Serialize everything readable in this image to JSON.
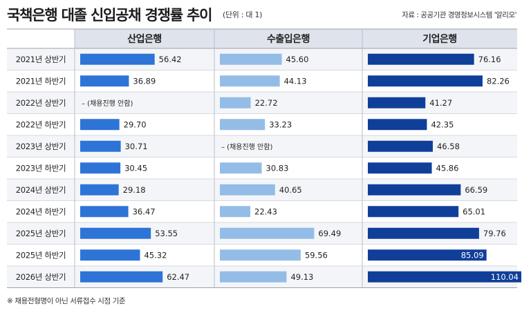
{
  "title": "국책은행 대졸 신입공채 경쟁률 추이",
  "unit_note": "(단위 : 대 1)",
  "source": "자료 : 공공기관 경영정보시스템 '알리오'",
  "footnote": "※ 채용전형명이 아닌 서류접수 시점 기준",
  "not_hired_label": "– (채용진행 안함)",
  "colors": {
    "산업은행": "#2e74d6",
    "수출입은행": "#93bde6",
    "기업은행": "#103f9a",
    "header_bg": "#dfe3ec",
    "row_bg_alt": "#f4f5f8"
  },
  "chart_data": {
    "type": "bar",
    "orientation": "horizontal",
    "categories": [
      "2021년 상반기",
      "2021년 하반기",
      "2022년 상반기",
      "2022년 하반기",
      "2023년 상반기",
      "2023년 하반기",
      "2024년 상반기",
      "2024년 하반기",
      "2025년 상반기",
      "2025년 하반기",
      "2026년 상반기"
    ],
    "series": [
      {
        "name": "산업은행",
        "values": [
          56.42,
          36.89,
          null,
          29.7,
          30.71,
          30.45,
          29.18,
          36.47,
          53.55,
          45.32,
          62.47
        ],
        "labels": [
          "56.42",
          "36.89",
          null,
          "29.70",
          "30.71",
          "30.45",
          "29.18",
          "36.47",
          "53.55",
          "45.32",
          "62.47"
        ]
      },
      {
        "name": "수출입은행",
        "values": [
          45.6,
          44.13,
          22.72,
          33.23,
          null,
          30.83,
          40.65,
          22.43,
          69.49,
          59.56,
          49.13
        ],
        "labels": [
          "45.60",
          "44.13",
          "22.72",
          "33.23",
          null,
          "30.83",
          "40.65",
          "22.43",
          "69.49",
          "59.56",
          "49.13"
        ]
      },
      {
        "name": "기업은행",
        "values": [
          76.16,
          82.26,
          41.27,
          42.35,
          46.58,
          45.86,
          66.59,
          65.01,
          79.76,
          85.09,
          110.04
        ],
        "labels": [
          "76.16",
          "82.26",
          "41.27",
          "42.35",
          "46.58",
          "45.86",
          "66.59",
          "65.01",
          "79.76",
          "85.09",
          "110.04"
        ]
      }
    ],
    "xlim": [
      0,
      110.04
    ],
    "legend": "column-headers",
    "grid": false
  }
}
